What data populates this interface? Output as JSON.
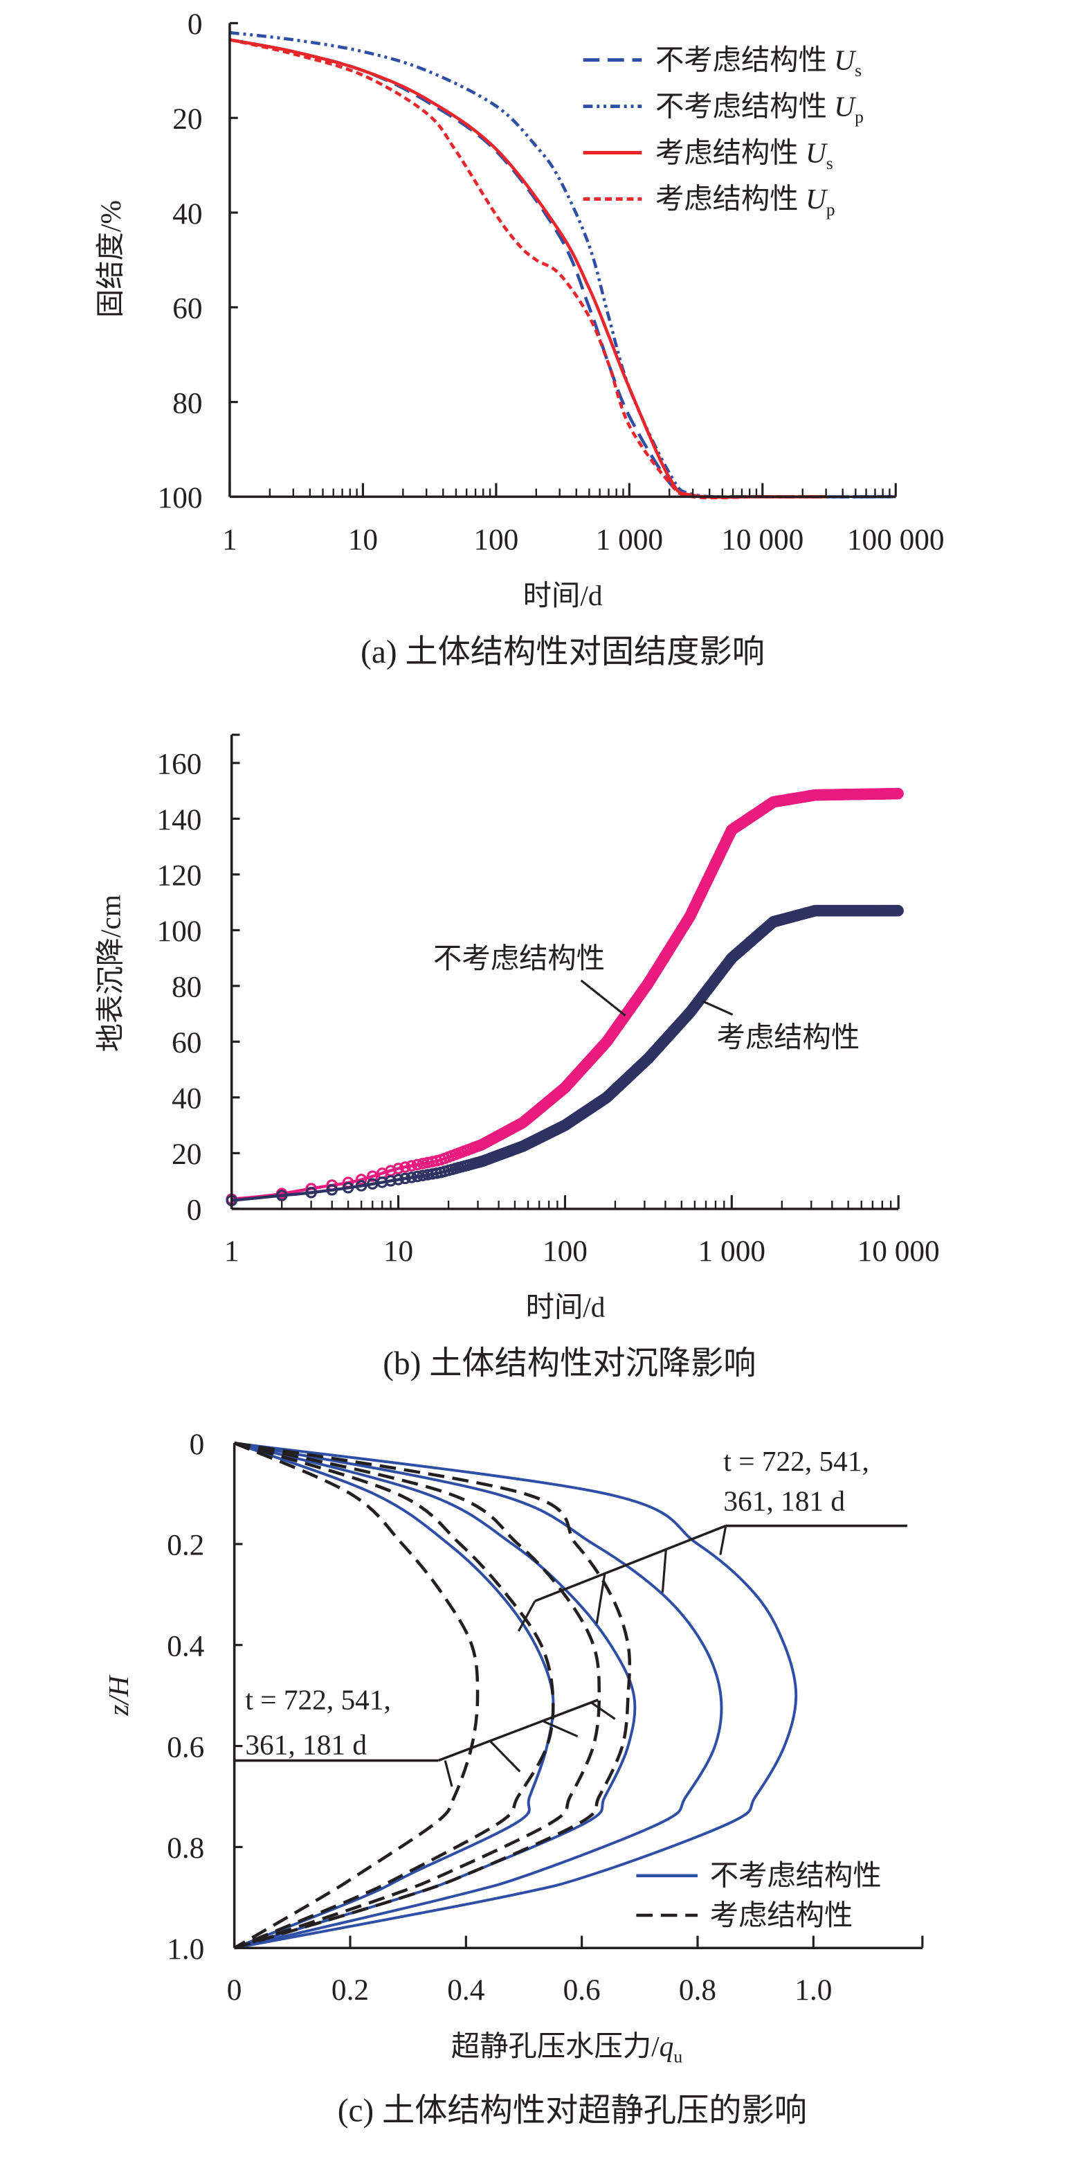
{
  "chart_data": [
    {
      "type": "line",
      "title": "(a) 土体结构性对固结度影响",
      "xlabel": "时间/d",
      "ylabel": "固结度/%",
      "xscale": "log",
      "xlim": [
        1,
        100000
      ],
      "ylim": [
        0,
        100
      ],
      "y_inverted": true,
      "grid": false,
      "legend_position": "top-right",
      "xticks": [
        1,
        10,
        100,
        1000,
        10000,
        100000
      ],
      "xtick_labels": [
        "1",
        "10",
        "100",
        "1 000",
        "10 000",
        "100 000"
      ],
      "yticks": [
        0,
        20,
        40,
        60,
        80,
        100
      ],
      "ytick_labels": [
        "0",
        "20",
        "40",
        "60",
        "80",
        "100"
      ],
      "series": [
        {
          "name": "不考虑结构性",
          "symbol": "U",
          "subscript": "s",
          "color": "#2f4fa6",
          "style": "dashed",
          "x": [
            1,
            3,
            10,
            30,
            100,
            300,
            500,
            700,
            1000,
            2000,
            3000,
            10000,
            100000
          ],
          "y": [
            3.5,
            6,
            10,
            16.5,
            27,
            45,
            60,
            72,
            83,
            97,
            99.7,
            100,
            100
          ]
        },
        {
          "name": "不考虑结构性",
          "symbol": "U",
          "subscript": "p",
          "color": "#2f4fa6",
          "style": "dash-dot-dot",
          "x": [
            1,
            3,
            10,
            30,
            100,
            200,
            300,
            500,
            700,
            1000,
            2000,
            3000,
            10000,
            100000
          ],
          "y": [
            2,
            3.5,
            6,
            10,
            17.5,
            26,
            33,
            47,
            62,
            77,
            95,
            99.5,
            100,
            100
          ]
        },
        {
          "name": "考虑结构性",
          "symbol": "U",
          "subscript": "s",
          "color": "#e8262b",
          "style": "solid",
          "x": [
            1,
            3,
            10,
            30,
            100,
            300,
            500,
            700,
            1000,
            2000,
            3000,
            10000,
            30000
          ],
          "y": [
            3.5,
            6,
            10,
            16,
            26.6,
            44,
            56,
            66,
            77,
            96,
            99.7,
            100,
            100
          ]
        },
        {
          "name": "考虑结构性",
          "symbol": "U",
          "subscript": "p",
          "color": "#e8262b",
          "style": "dotted",
          "x": [
            1,
            3,
            10,
            30,
            50,
            100,
            150,
            200,
            300,
            500,
            700,
            1000,
            2000,
            3000,
            10000,
            30000
          ],
          "y": [
            3.5,
            6.5,
            11,
            19,
            27,
            40.5,
            47,
            50,
            53,
            62,
            72,
            85,
            97,
            100,
            100,
            100
          ]
        }
      ]
    },
    {
      "type": "line",
      "title": "(b) 土体结构性对沉降影响",
      "xlabel": "时间/d",
      "ylabel": "地表沉降/cm",
      "xscale": "log",
      "xlim": [
        1,
        10000
      ],
      "ylim": [
        0,
        170
      ],
      "grid": false,
      "xticks": [
        1,
        10,
        100,
        1000,
        10000
      ],
      "xtick_labels": [
        "1",
        "10",
        "100",
        "1 000",
        "10 000"
      ],
      "yticks": [
        0,
        20,
        40,
        60,
        80,
        100,
        120,
        140,
        160
      ],
      "ytick_labels": [
        "0",
        "20",
        "40",
        "60",
        "80",
        "100",
        "120",
        "140",
        "160"
      ],
      "series": [
        {
          "name": "不考虑结构性",
          "color": "#ea1a7f",
          "marker": "circle",
          "x": [
            1,
            1.78,
            3.16,
            5.6,
            10,
            17.8,
            31.6,
            56,
            100,
            178,
            316,
            562,
            1000,
            1778,
            3162,
            10000
          ],
          "y": [
            3.5,
            5,
            7.5,
            10,
            14.5,
            17.5,
            23,
            31,
            43.5,
            60,
            81,
            105,
            136,
            146,
            148.5,
            149
          ]
        },
        {
          "name": "考虑结构性",
          "color": "#2e3262",
          "marker": "circle",
          "x": [
            1,
            1.78,
            3.16,
            5.6,
            10,
            17.8,
            31.6,
            56,
            100,
            178,
            316,
            562,
            1000,
            1778,
            3162,
            10000
          ],
          "y": [
            3,
            4.5,
            6,
            8,
            10.5,
            13,
            17,
            22.5,
            30,
            40,
            54,
            70.5,
            90,
            103,
            107,
            107
          ]
        }
      ],
      "annotations": [
        "不考虑结构性",
        "考虑结构性"
      ]
    },
    {
      "type": "line",
      "title": "(c) 土体结构性对超静孔压的影响",
      "xlabel": "超静孔压水压力/",
      "xlabel_symbol": "q",
      "xlabel_subscript": "u",
      "ylabel": "z/H",
      "xlim": [
        0,
        1.19
      ],
      "ylim": [
        0,
        1.0
      ],
      "y_inverted": true,
      "grid": false,
      "legend_position": "bottom-right",
      "xticks": [
        0,
        0.2,
        0.4,
        0.6,
        0.8,
        1.0
      ],
      "xtick_labels": [
        "0",
        "0.2",
        "0.4",
        "0.6",
        "0.8",
        "1.0"
      ],
      "yticks": [
        0,
        0.2,
        0.4,
        0.6,
        0.8,
        1.0
      ],
      "ytick_labels": [
        "0",
        "0.2",
        "0.4",
        "0.6",
        "0.8",
        "1.0"
      ],
      "z": [
        0,
        0.1,
        0.2,
        0.3,
        0.4,
        0.5,
        0.6,
        0.7,
        0.75,
        0.85,
        0.9,
        1.0
      ],
      "series": [
        {
          "name": "不考虑结构性",
          "color": "#2f4fa6",
          "style": "solid",
          "profiles": [
            {
              "t": 722,
              "x": [
                0,
                0.24,
                0.37,
                0.46,
                0.52,
                0.55,
                0.54,
                0.51,
                0.49,
                0.31,
                0.22,
                0
              ]
            },
            {
              "t": 541,
              "x": [
                0,
                0.33,
                0.48,
                0.58,
                0.65,
                0.69,
                0.68,
                0.64,
                0.61,
                0.41,
                0.29,
                0
              ]
            },
            {
              "t": 361,
              "x": [
                0,
                0.45,
                0.62,
                0.74,
                0.81,
                0.84,
                0.83,
                0.78,
                0.74,
                0.52,
                0.37,
                0
              ]
            },
            {
              "t": 181,
              "x": [
                0,
                0.64,
                0.8,
                0.9,
                0.95,
                0.97,
                0.95,
                0.9,
                0.86,
                0.63,
                0.46,
                0
              ]
            }
          ]
        },
        {
          "name": "考虑结构性",
          "color": "#231f20",
          "style": "dashed",
          "profiles": [
            {
              "t": 722,
              "x": [
                0,
                0.2,
                0.29,
                0.36,
                0.41,
                0.42,
                0.41,
                0.38,
                0.35,
                0.22,
                0.15,
                0
              ]
            },
            {
              "t": 541,
              "x": [
                0,
                0.28,
                0.39,
                0.47,
                0.53,
                0.55,
                0.54,
                0.49,
                0.46,
                0.3,
                0.21,
                0
              ]
            },
            {
              "t": 361,
              "x": [
                0,
                0.37,
                0.49,
                0.57,
                0.62,
                0.63,
                0.62,
                0.58,
                0.55,
                0.37,
                0.26,
                0
              ]
            },
            {
              "t": 181,
              "x": [
                0,
                0.5,
                0.59,
                0.65,
                0.68,
                0.68,
                0.67,
                0.63,
                0.6,
                0.41,
                0.29,
                0
              ]
            }
          ]
        }
      ],
      "annotations": [
        {
          "line1": "t = 722, 541,",
          "line2": "361, 181 d",
          "target": "不考虑结构性"
        },
        {
          "line1": "t = 722, 541,",
          "line2": "361, 181 d",
          "target": "考虑结构性"
        }
      ]
    }
  ]
}
